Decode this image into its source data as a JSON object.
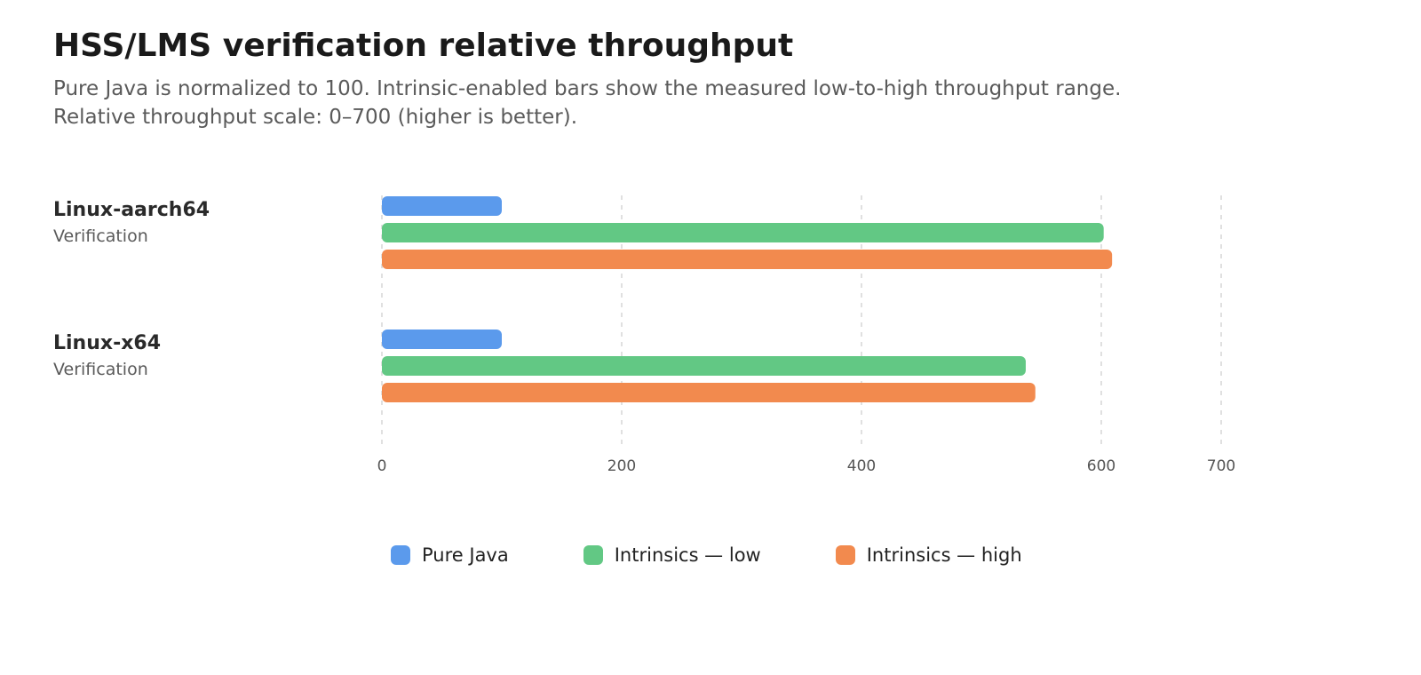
{
  "header": {
    "title": "HSS/LMS verification relative throughput",
    "subtitle_line1": "Pure Java is normalized to 100. Intrinsic-enabled bars show the measured low-to-high throughput range.",
    "subtitle_line2": "Relative throughput scale: 0–700 (higher is better)."
  },
  "chart_data": {
    "type": "bar",
    "orientation": "horizontal",
    "title": "HSS/LMS verification relative throughput",
    "subtitle": "Pure Java is normalized to 100. Intrinsic-enabled bars show the measured low-to-high throughput range. Relative throughput scale: 0–700 (higher is better).",
    "categories": [
      {
        "label": "Linux-aarch64",
        "sublabel": "Verification"
      },
      {
        "label": "Linux-x64",
        "sublabel": "Verification"
      }
    ],
    "series": [
      {
        "name": "Pure Java",
        "color": "#5b9aec",
        "values": [
          100,
          100
        ]
      },
      {
        "name": "Intrinsics — low",
        "color": "#62c884",
        "values": [
          602,
          537
        ]
      },
      {
        "name": "Intrinsics — high",
        "color": "#f28a4e",
        "values": [
          609,
          545
        ]
      }
    ],
    "xlim": [
      0,
      700
    ],
    "xticks": [
      0,
      200,
      400,
      600,
      700
    ],
    "grid": true,
    "legend_position": "bottom"
  }
}
